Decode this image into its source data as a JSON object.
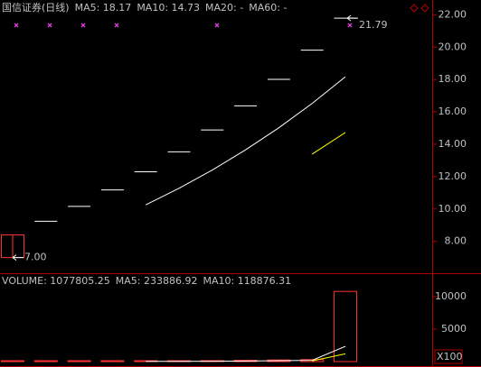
{
  "title": "国信证券(日线)",
  "price_legend_series": [
    0,
    1,
    2,
    3
  ],
  "volume_title": "VOLUME: 1077805.25",
  "chart_data": [
    {
      "type": "candlestick",
      "open": [
        7.0,
        9.24,
        10.16,
        11.18,
        12.3,
        13.53,
        14.88,
        16.37,
        18.01,
        19.81,
        21.79
      ],
      "high": [
        8.4,
        9.24,
        10.16,
        11.18,
        12.3,
        13.53,
        14.88,
        16.37,
        18.01,
        19.81,
        21.79
      ],
      "low": [
        7.0,
        9.24,
        10.16,
        11.18,
        12.3,
        13.53,
        14.88,
        16.37,
        18.01,
        19.81,
        21.79
      ],
      "close": [
        8.4,
        9.24,
        10.16,
        11.18,
        12.3,
        13.53,
        14.88,
        16.37,
        18.01,
        19.81,
        21.79
      ],
      "up_color": "#ff3232",
      "flat_color": "#ffffff",
      "ylim": [
        6.2,
        22.8
      ],
      "yticks": [
        {
          "value": 8,
          "label": "8.00"
        },
        {
          "value": 10,
          "label": "10.00"
        },
        {
          "value": 12,
          "label": "12.00"
        },
        {
          "value": 14,
          "label": "14.00"
        },
        {
          "value": 16,
          "label": "16.00"
        },
        {
          "value": 18,
          "label": "18.00"
        },
        {
          "value": 20,
          "label": "20.00"
        },
        {
          "value": 22,
          "label": "22.00"
        }
      ],
      "series": [
        {
          "name": "MA5: 18.17",
          "color": "#ffffff",
          "values": [
            null,
            null,
            null,
            null,
            10.256,
            11.282,
            12.41,
            13.652,
            15.018,
            16.52,
            18.172
          ]
        },
        {
          "name": "MA10: 14.73",
          "color": "#ffff00",
          "values": [
            null,
            null,
            null,
            null,
            null,
            null,
            null,
            null,
            null,
            13.388,
            14.727
          ]
        },
        {
          "name": "MA20: -",
          "color": "#ff00ff",
          "values": [
            null,
            null,
            null,
            null,
            null,
            null,
            null,
            null,
            null,
            null,
            null
          ]
        },
        {
          "name": "MA60: -",
          "color": "#00ff00",
          "values": [
            null,
            null,
            null,
            null,
            null,
            null,
            null,
            null,
            null,
            null,
            null
          ]
        }
      ],
      "high_label": 21.79,
      "low_label": {
        "value": 7,
        "label": "7.00"
      }
    },
    {
      "type": "bar",
      "values": [
        40,
        30,
        25,
        35,
        30,
        33.25,
        150,
        200,
        250,
        316.3,
        10778.0525
      ],
      "color": "#ff3232",
      "ylim": [
        0,
        13300
      ],
      "yticks": [
        5000,
        10000
      ],
      "unit_label": "X100",
      "series": [
        {
          "name": "MA5: 233886.92",
          "color": "#ffffff",
          "values": [
            null,
            null,
            null,
            null,
            32,
            30.65,
            54.65,
            89.65,
            132.65,
            189.91,
            2338.8692
          ]
        },
        {
          "name": "MA10: 118876.31",
          "color": "#ffff00",
          "values": [
            null,
            null,
            null,
            null,
            null,
            null,
            null,
            null,
            null,
            110.955,
            1188.7631
          ]
        }
      ]
    }
  ]
}
